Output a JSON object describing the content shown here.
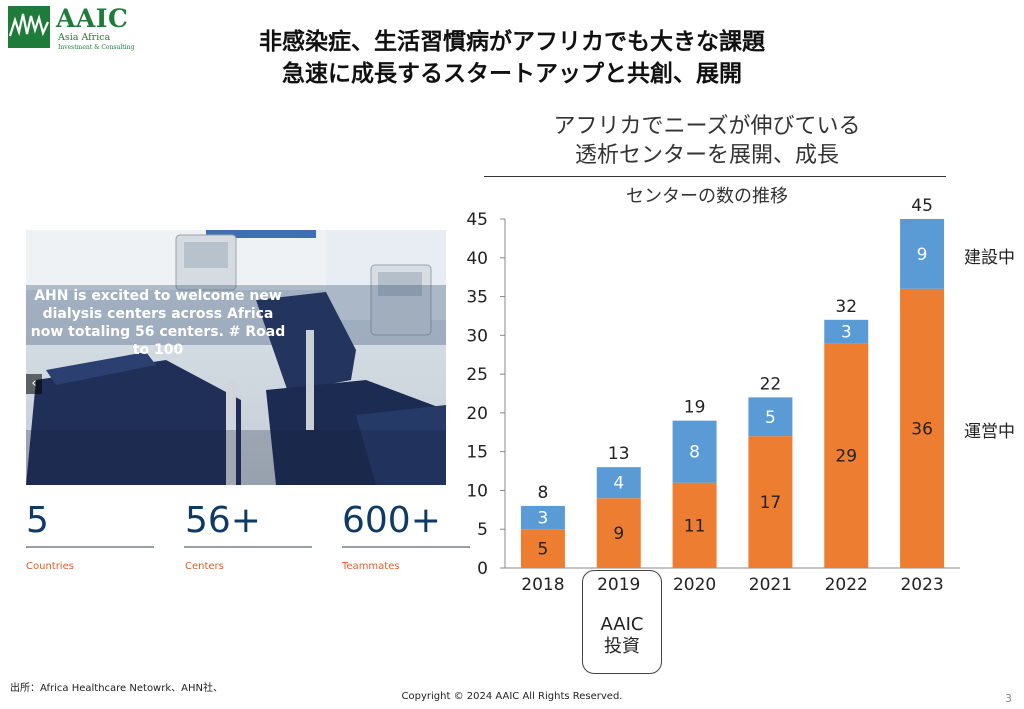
{
  "header": {
    "logo_name": "AAIC",
    "logo_sub": "Asia Africa",
    "logo_sub2": "Investment & Consulting",
    "title_line1": "非感染症、生活習慣病がアフリカでも大きな課題",
    "title_line2": "急速に成長するスタートアップと共創、展開"
  },
  "right": {
    "heading_line1": "アフリカでニーズが伸びている",
    "heading_line2": "透析センターを展開、成長",
    "investment_note": "AAIC\n投資"
  },
  "left": {
    "photo_caption": "AHN is excited to welcome new dialysis centers across Africa now totaling 56 centers. # Road to 100",
    "photo_prev_icon": "chevron-left-icon",
    "stats": [
      {
        "value": "5",
        "label": "Countries"
      },
      {
        "value": "56+",
        "label": "Centers"
      },
      {
        "value": "600+",
        "label": "Teammates"
      }
    ]
  },
  "footer": {
    "source": "出所：Africa Healthcare Netowrk、AHN社、",
    "copyright": "Copyright © 2024 AAIC All Rights Reserved.",
    "page": "3"
  },
  "colors": {
    "operating": "#ed7d31",
    "construction": "#5b9bd5",
    "logo_green": "#1e7b3a",
    "stat_blue": "#0f3a66",
    "stat_label": "#e05d2a"
  },
  "chart_data": {
    "type": "bar",
    "stacked": true,
    "title": "センターの数の推移",
    "categories": [
      "2018",
      "2019",
      "2020",
      "2021",
      "2022",
      "2023"
    ],
    "series": [
      {
        "name": "運営中",
        "values": [
          5,
          9,
          11,
          17,
          29,
          36
        ]
      },
      {
        "name": "建設中",
        "values": [
          3,
          4,
          8,
          5,
          3,
          9
        ]
      }
    ],
    "totals": [
      8,
      13,
      19,
      22,
      32,
      45
    ],
    "ylim": [
      0,
      45
    ],
    "yticks": [
      0,
      5,
      10,
      15,
      20,
      25,
      30,
      35,
      40,
      45
    ],
    "grid": false,
    "legend": "right"
  }
}
